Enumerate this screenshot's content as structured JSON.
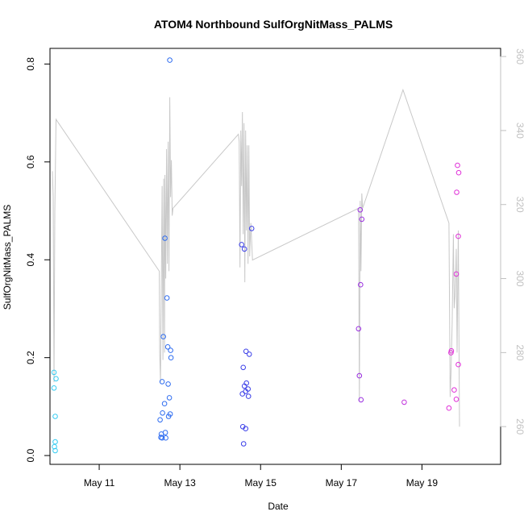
{
  "chart_data": {
    "type": "scatter",
    "title": "ATOM4 Northbound SulfOrgNitMass_PALMS",
    "xlabel": "Date",
    "ylabel": "SulfOrgNitMass_PALMS",
    "xlim": [
      9.78,
      20.95
    ],
    "ylim": [
      -0.018,
      0.832
    ],
    "y2lim": [
      249.8,
      362.2
    ],
    "x_ticks": [
      {
        "value": 11,
        "label": "May 11"
      },
      {
        "value": 13,
        "label": "May 13"
      },
      {
        "value": 15,
        "label": "May 15"
      },
      {
        "value": 17,
        "label": "May 17"
      },
      {
        "value": 19,
        "label": "May 19"
      }
    ],
    "y_ticks": [
      {
        "value": 0.0,
        "label": "0.0"
      },
      {
        "value": 0.2,
        "label": "0.2"
      },
      {
        "value": 0.4,
        "label": "0.4"
      },
      {
        "value": 0.6,
        "label": "0.6"
      },
      {
        "value": 0.8,
        "label": "0.8"
      }
    ],
    "y2_ticks": [
      {
        "value": 260,
        "label": "260"
      },
      {
        "value": 280,
        "label": "280"
      },
      {
        "value": 300,
        "label": "300"
      },
      {
        "value": 320,
        "label": "320"
      },
      {
        "value": 340,
        "label": "340"
      },
      {
        "value": 360,
        "label": "360"
      }
    ],
    "line_color": "#c8c8c8",
    "secondary_axis_color": "#c0c0c0",
    "points": [
      {
        "x": 9.88,
        "y": 0.17,
        "color": "#33ccf2"
      },
      {
        "x": 9.88,
        "y": 0.138,
        "color": "#33ccf2"
      },
      {
        "x": 9.93,
        "y": 0.157,
        "color": "#33ccf2"
      },
      {
        "x": 9.91,
        "y": 0.08,
        "color": "#33ccf2"
      },
      {
        "x": 9.91,
        "y": 0.028,
        "color": "#33ccf2"
      },
      {
        "x": 9.89,
        "y": 0.018,
        "color": "#33ccf2"
      },
      {
        "x": 9.91,
        "y": 0.01,
        "color": "#33ccf2"
      },
      {
        "x": 12.75,
        "y": 0.808,
        "color": "#2e6cf0"
      },
      {
        "x": 12.63,
        "y": 0.444,
        "color": "#2e6cf0"
      },
      {
        "x": 12.68,
        "y": 0.322,
        "color": "#2e6cf0"
      },
      {
        "x": 12.59,
        "y": 0.243,
        "color": "#2e6cf0"
      },
      {
        "x": 12.7,
        "y": 0.222,
        "color": "#2e6cf0"
      },
      {
        "x": 12.77,
        "y": 0.215,
        "color": "#2e6cf0"
      },
      {
        "x": 12.78,
        "y": 0.2,
        "color": "#2e6cf0"
      },
      {
        "x": 12.56,
        "y": 0.151,
        "color": "#2e6cf0"
      },
      {
        "x": 12.71,
        "y": 0.146,
        "color": "#2e6cf0"
      },
      {
        "x": 12.74,
        "y": 0.118,
        "color": "#2e6cf0"
      },
      {
        "x": 12.62,
        "y": 0.106,
        "color": "#2e6cf0"
      },
      {
        "x": 12.57,
        "y": 0.087,
        "color": "#2e6cf0"
      },
      {
        "x": 12.76,
        "y": 0.085,
        "color": "#2e6cf0"
      },
      {
        "x": 12.72,
        "y": 0.08,
        "color": "#2e6cf0"
      },
      {
        "x": 12.51,
        "y": 0.073,
        "color": "#2e6cf0"
      },
      {
        "x": 12.64,
        "y": 0.047,
        "color": "#2e6cf0"
      },
      {
        "x": 12.54,
        "y": 0.044,
        "color": "#2e6cf0"
      },
      {
        "x": 12.53,
        "y": 0.037,
        "color": "#2e6cf0"
      },
      {
        "x": 12.56,
        "y": 0.036,
        "color": "#2e6cf0"
      },
      {
        "x": 12.65,
        "y": 0.036,
        "color": "#2e6cf0"
      },
      {
        "x": 14.78,
        "y": 0.464,
        "color": "#3a3ee8"
      },
      {
        "x": 14.53,
        "y": 0.431,
        "color": "#3a3ee8"
      },
      {
        "x": 14.6,
        "y": 0.422,
        "color": "#3a3ee8"
      },
      {
        "x": 14.64,
        "y": 0.213,
        "color": "#3a3ee8"
      },
      {
        "x": 14.72,
        "y": 0.207,
        "color": "#3a3ee8"
      },
      {
        "x": 14.57,
        "y": 0.18,
        "color": "#3a3ee8"
      },
      {
        "x": 14.65,
        "y": 0.148,
        "color": "#3a3ee8"
      },
      {
        "x": 14.6,
        "y": 0.142,
        "color": "#3a3ee8"
      },
      {
        "x": 14.69,
        "y": 0.136,
        "color": "#3a3ee8"
      },
      {
        "x": 14.63,
        "y": 0.131,
        "color": "#3a3ee8"
      },
      {
        "x": 14.55,
        "y": 0.126,
        "color": "#3a3ee8"
      },
      {
        "x": 14.7,
        "y": 0.121,
        "color": "#3a3ee8"
      },
      {
        "x": 14.56,
        "y": 0.059,
        "color": "#3a3ee8"
      },
      {
        "x": 14.63,
        "y": 0.055,
        "color": "#3a3ee8"
      },
      {
        "x": 14.58,
        "y": 0.024,
        "color": "#3a3ee8"
      },
      {
        "x": 17.47,
        "y": 0.502,
        "color": "#9a2ee0"
      },
      {
        "x": 17.51,
        "y": 0.483,
        "color": "#9a2ee0"
      },
      {
        "x": 17.48,
        "y": 0.349,
        "color": "#9a2ee0"
      },
      {
        "x": 17.43,
        "y": 0.259,
        "color": "#9a2ee0"
      },
      {
        "x": 17.45,
        "y": 0.163,
        "color": "#9a2ee0"
      },
      {
        "x": 17.49,
        "y": 0.114,
        "color": "#9a2ee0"
      },
      {
        "x": 18.56,
        "y": 0.109,
        "color": "#c030dc"
      },
      {
        "x": 19.88,
        "y": 0.593,
        "color": "#e030d8"
      },
      {
        "x": 19.91,
        "y": 0.578,
        "color": "#e030d8"
      },
      {
        "x": 19.86,
        "y": 0.538,
        "color": "#e030d8"
      },
      {
        "x": 19.9,
        "y": 0.448,
        "color": "#e030d8"
      },
      {
        "x": 19.85,
        "y": 0.371,
        "color": "#e030d8"
      },
      {
        "x": 19.73,
        "y": 0.214,
        "color": "#e030d8"
      },
      {
        "x": 19.72,
        "y": 0.21,
        "color": "#e030d8"
      },
      {
        "x": 19.9,
        "y": 0.186,
        "color": "#e030d8"
      },
      {
        "x": 19.8,
        "y": 0.134,
        "color": "#e030d8"
      },
      {
        "x": 19.85,
        "y": 0.115,
        "color": "#e030d8"
      },
      {
        "x": 19.67,
        "y": 0.097,
        "color": "#e030d8"
      }
    ],
    "secondary_line": {
      "name": "right-axis line",
      "x": [
        9.84,
        9.86,
        9.88,
        9.9,
        9.93,
        12.49,
        12.5,
        12.52,
        12.54,
        12.56,
        12.58,
        12.6,
        12.62,
        12.63,
        12.65,
        12.67,
        12.69,
        12.71,
        12.73,
        12.75,
        12.77,
        12.79,
        12.81,
        12.83,
        14.45,
        14.47,
        14.49,
        14.51,
        14.53,
        14.55,
        14.57,
        14.59,
        14.61,
        14.63,
        14.65,
        14.67,
        14.69,
        14.71,
        14.73,
        14.76,
        14.8,
        17.43,
        17.45,
        17.47,
        17.49,
        17.51,
        17.53,
        18.53,
        19.67,
        19.7,
        19.72,
        19.75,
        19.78,
        19.8,
        19.82,
        19.85,
        19.87,
        19.9,
        19.93
      ],
      "y": [
        329,
        322,
        272,
        318,
        343,
        302,
        280,
        272,
        298,
        325,
        278,
        327,
        280,
        328,
        300,
        335,
        304,
        337,
        302,
        349,
        322,
        332,
        317,
        319,
        339,
        337,
        303,
        340,
        325,
        345,
        312,
        342,
        299,
        340,
        313,
        336,
        304,
        336,
        306,
        315,
        305,
        319,
        267,
        321,
        302,
        323,
        319,
        351,
        315,
        268,
        274,
        288,
        312,
        292,
        295,
        308,
        280,
        313,
        260
      ]
    }
  }
}
